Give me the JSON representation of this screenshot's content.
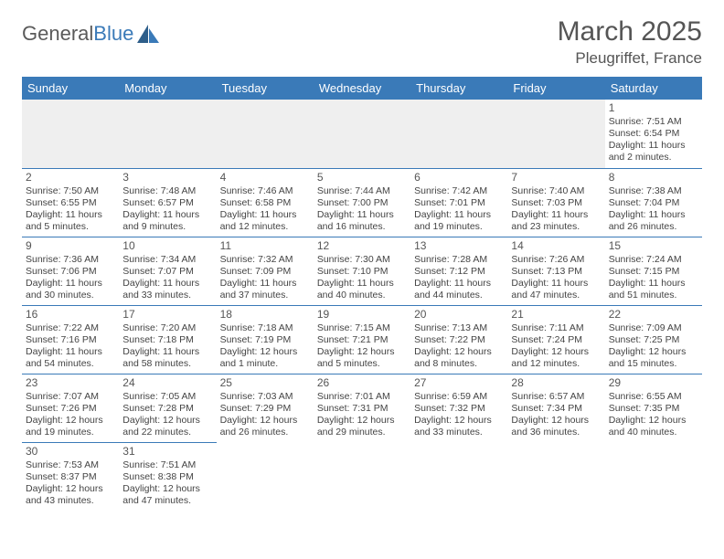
{
  "logo": {
    "text1": "General",
    "text2": "Blue"
  },
  "title": "March 2025",
  "location": "Pleugriffet, France",
  "colors": {
    "header_bg": "#3a7ab8",
    "header_fg": "#ffffff",
    "border": "#3a7ab8",
    "empty_bg": "#efefef",
    "text": "#444444",
    "title": "#555555"
  },
  "weekdays": [
    "Sunday",
    "Monday",
    "Tuesday",
    "Wednesday",
    "Thursday",
    "Friday",
    "Saturday"
  ],
  "weeks": [
    [
      null,
      null,
      null,
      null,
      null,
      null,
      {
        "n": "1",
        "sr": "Sunrise: 7:51 AM",
        "ss": "Sunset: 6:54 PM",
        "dl": "Daylight: 11 hours and 2 minutes."
      }
    ],
    [
      {
        "n": "2",
        "sr": "Sunrise: 7:50 AM",
        "ss": "Sunset: 6:55 PM",
        "dl": "Daylight: 11 hours and 5 minutes."
      },
      {
        "n": "3",
        "sr": "Sunrise: 7:48 AM",
        "ss": "Sunset: 6:57 PM",
        "dl": "Daylight: 11 hours and 9 minutes."
      },
      {
        "n": "4",
        "sr": "Sunrise: 7:46 AM",
        "ss": "Sunset: 6:58 PM",
        "dl": "Daylight: 11 hours and 12 minutes."
      },
      {
        "n": "5",
        "sr": "Sunrise: 7:44 AM",
        "ss": "Sunset: 7:00 PM",
        "dl": "Daylight: 11 hours and 16 minutes."
      },
      {
        "n": "6",
        "sr": "Sunrise: 7:42 AM",
        "ss": "Sunset: 7:01 PM",
        "dl": "Daylight: 11 hours and 19 minutes."
      },
      {
        "n": "7",
        "sr": "Sunrise: 7:40 AM",
        "ss": "Sunset: 7:03 PM",
        "dl": "Daylight: 11 hours and 23 minutes."
      },
      {
        "n": "8",
        "sr": "Sunrise: 7:38 AM",
        "ss": "Sunset: 7:04 PM",
        "dl": "Daylight: 11 hours and 26 minutes."
      }
    ],
    [
      {
        "n": "9",
        "sr": "Sunrise: 7:36 AM",
        "ss": "Sunset: 7:06 PM",
        "dl": "Daylight: 11 hours and 30 minutes."
      },
      {
        "n": "10",
        "sr": "Sunrise: 7:34 AM",
        "ss": "Sunset: 7:07 PM",
        "dl": "Daylight: 11 hours and 33 minutes."
      },
      {
        "n": "11",
        "sr": "Sunrise: 7:32 AM",
        "ss": "Sunset: 7:09 PM",
        "dl": "Daylight: 11 hours and 37 minutes."
      },
      {
        "n": "12",
        "sr": "Sunrise: 7:30 AM",
        "ss": "Sunset: 7:10 PM",
        "dl": "Daylight: 11 hours and 40 minutes."
      },
      {
        "n": "13",
        "sr": "Sunrise: 7:28 AM",
        "ss": "Sunset: 7:12 PM",
        "dl": "Daylight: 11 hours and 44 minutes."
      },
      {
        "n": "14",
        "sr": "Sunrise: 7:26 AM",
        "ss": "Sunset: 7:13 PM",
        "dl": "Daylight: 11 hours and 47 minutes."
      },
      {
        "n": "15",
        "sr": "Sunrise: 7:24 AM",
        "ss": "Sunset: 7:15 PM",
        "dl": "Daylight: 11 hours and 51 minutes."
      }
    ],
    [
      {
        "n": "16",
        "sr": "Sunrise: 7:22 AM",
        "ss": "Sunset: 7:16 PM",
        "dl": "Daylight: 11 hours and 54 minutes."
      },
      {
        "n": "17",
        "sr": "Sunrise: 7:20 AM",
        "ss": "Sunset: 7:18 PM",
        "dl": "Daylight: 11 hours and 58 minutes."
      },
      {
        "n": "18",
        "sr": "Sunrise: 7:18 AM",
        "ss": "Sunset: 7:19 PM",
        "dl": "Daylight: 12 hours and 1 minute."
      },
      {
        "n": "19",
        "sr": "Sunrise: 7:15 AM",
        "ss": "Sunset: 7:21 PM",
        "dl": "Daylight: 12 hours and 5 minutes."
      },
      {
        "n": "20",
        "sr": "Sunrise: 7:13 AM",
        "ss": "Sunset: 7:22 PM",
        "dl": "Daylight: 12 hours and 8 minutes."
      },
      {
        "n": "21",
        "sr": "Sunrise: 7:11 AM",
        "ss": "Sunset: 7:24 PM",
        "dl": "Daylight: 12 hours and 12 minutes."
      },
      {
        "n": "22",
        "sr": "Sunrise: 7:09 AM",
        "ss": "Sunset: 7:25 PM",
        "dl": "Daylight: 12 hours and 15 minutes."
      }
    ],
    [
      {
        "n": "23",
        "sr": "Sunrise: 7:07 AM",
        "ss": "Sunset: 7:26 PM",
        "dl": "Daylight: 12 hours and 19 minutes."
      },
      {
        "n": "24",
        "sr": "Sunrise: 7:05 AM",
        "ss": "Sunset: 7:28 PM",
        "dl": "Daylight: 12 hours and 22 minutes."
      },
      {
        "n": "25",
        "sr": "Sunrise: 7:03 AM",
        "ss": "Sunset: 7:29 PM",
        "dl": "Daylight: 12 hours and 26 minutes."
      },
      {
        "n": "26",
        "sr": "Sunrise: 7:01 AM",
        "ss": "Sunset: 7:31 PM",
        "dl": "Daylight: 12 hours and 29 minutes."
      },
      {
        "n": "27",
        "sr": "Sunrise: 6:59 AM",
        "ss": "Sunset: 7:32 PM",
        "dl": "Daylight: 12 hours and 33 minutes."
      },
      {
        "n": "28",
        "sr": "Sunrise: 6:57 AM",
        "ss": "Sunset: 7:34 PM",
        "dl": "Daylight: 12 hours and 36 minutes."
      },
      {
        "n": "29",
        "sr": "Sunrise: 6:55 AM",
        "ss": "Sunset: 7:35 PM",
        "dl": "Daylight: 12 hours and 40 minutes."
      }
    ],
    [
      {
        "n": "30",
        "sr": "Sunrise: 7:53 AM",
        "ss": "Sunset: 8:37 PM",
        "dl": "Daylight: 12 hours and 43 minutes."
      },
      {
        "n": "31",
        "sr": "Sunrise: 7:51 AM",
        "ss": "Sunset: 8:38 PM",
        "dl": "Daylight: 12 hours and 47 minutes."
      },
      null,
      null,
      null,
      null,
      null
    ]
  ]
}
